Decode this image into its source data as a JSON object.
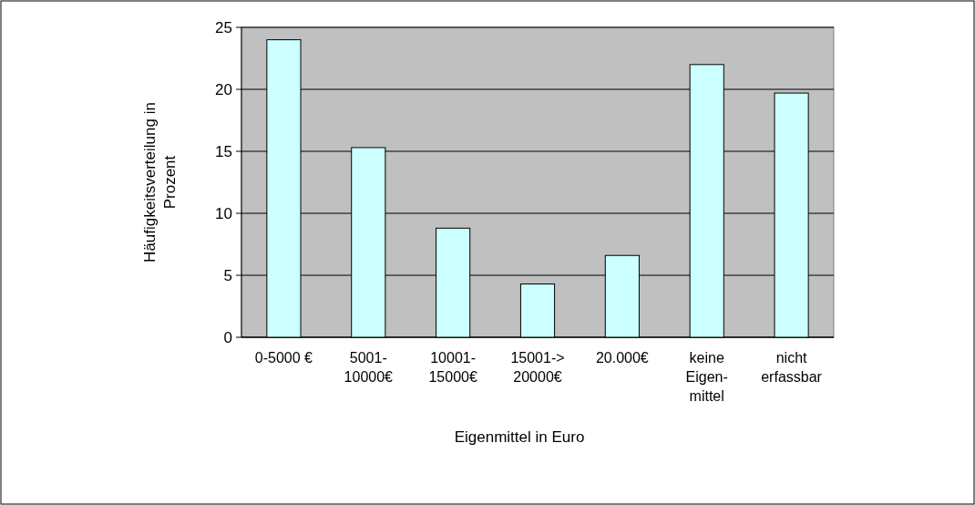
{
  "chart_data": {
    "type": "bar",
    "xlabel": "Eigenmittel in Euro",
    "ylabel": "Häufigkeitsverteilung in Prozent",
    "categories": [
      "0-5000 €",
      "5001- 10000€",
      "10001- 15000€",
      "15001-> 20000€",
      "20.000€",
      "keine Eigen- mittel",
      "nicht erfassbar"
    ],
    "values": [
      24,
      15.3,
      8.8,
      4.3,
      6.6,
      22,
      19.7
    ],
    "color": "#ccffff",
    "ylim": [
      0,
      25
    ],
    "yticks": [
      0,
      5,
      10,
      15,
      20,
      25
    ],
    "grid": "y"
  }
}
